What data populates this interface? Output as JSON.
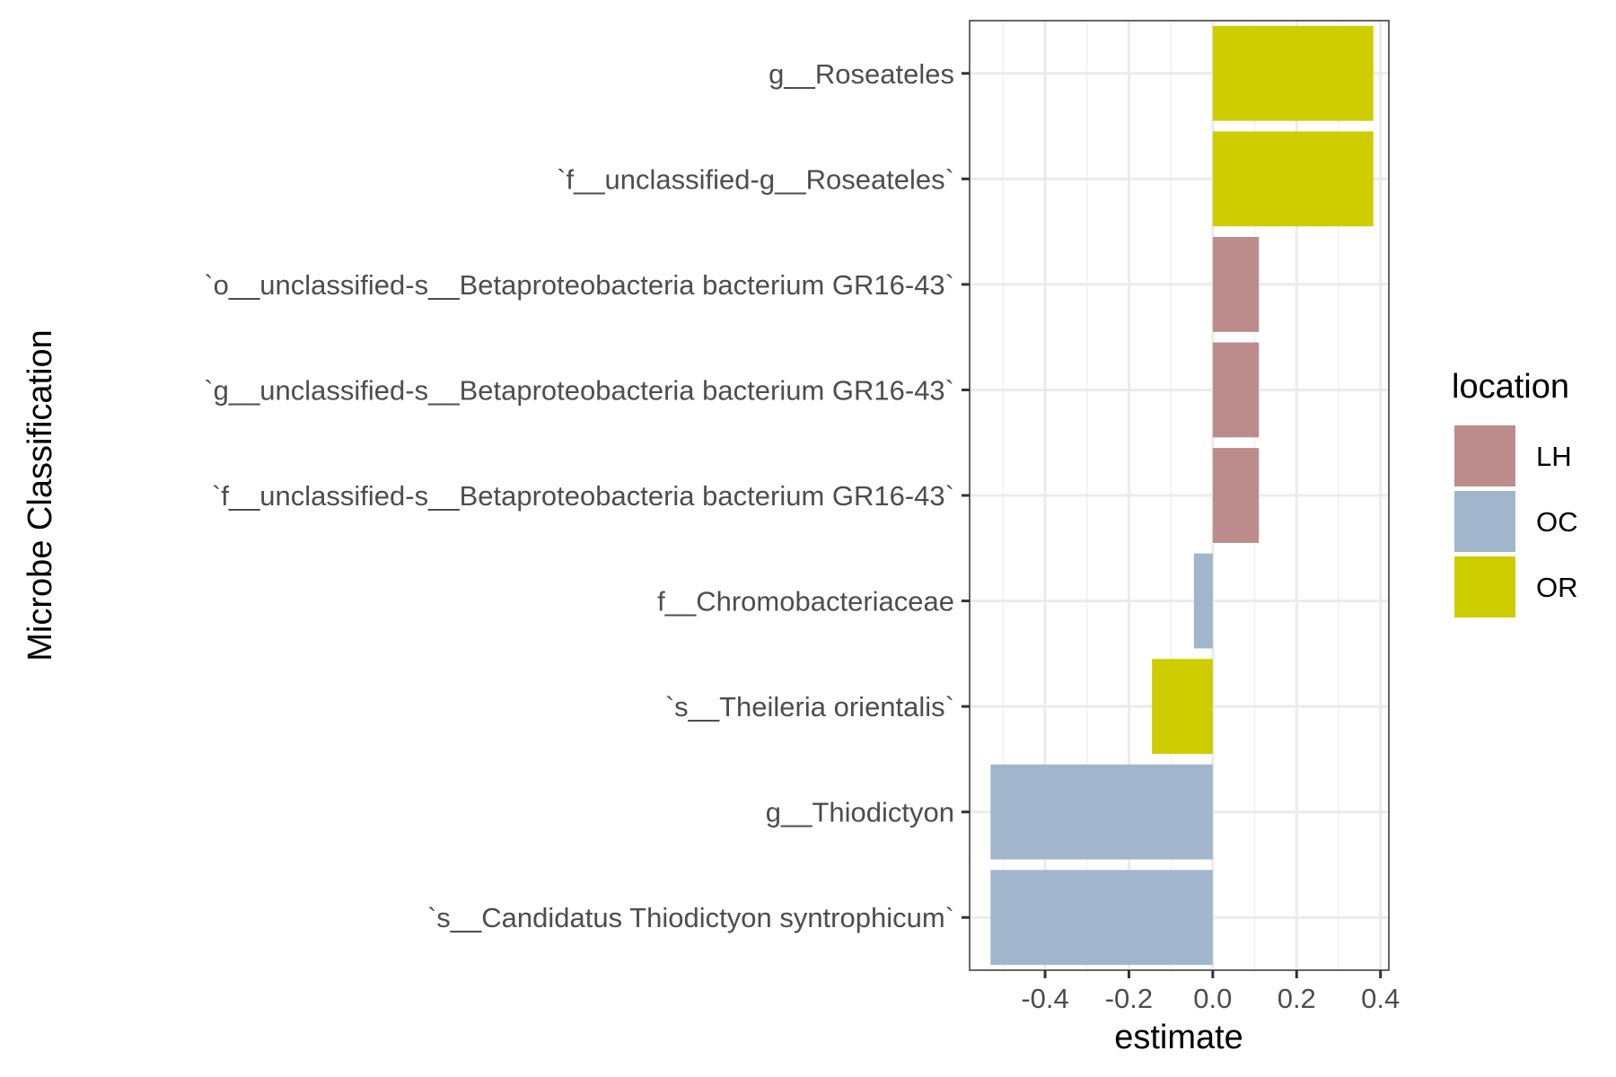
{
  "chart_data": {
    "type": "bar",
    "orientation": "horizontal",
    "xlabel": "estimate",
    "ylabel": "Microbe Classification",
    "xlim": [
      -0.58,
      0.42
    ],
    "x_ticks": [
      -0.4,
      -0.2,
      0.0,
      0.2,
      0.4
    ],
    "x_tick_labels": [
      "-0.4",
      "-0.2",
      "0.0",
      "0.2",
      "0.4"
    ],
    "grid": true,
    "legend_position": "right",
    "categories": [
      "g__Roseateles",
      "`f__unclassified-g__Roseateles`",
      "`o__unclassified-s__Betaproteobacteria bacterium GR16-43`",
      "`g__unclassified-s__Betaproteobacteria bacterium GR16-43`",
      "`f__unclassified-s__Betaproteobacteria bacterium GR16-43`",
      "f__Chromobacteriaceae",
      "`s__Theileria orientalis`",
      "g__Thiodictyon",
      "`s__Candidatus Thiodictyon syntrophicum`"
    ],
    "values": [
      0.383,
      0.383,
      0.11,
      0.11,
      0.11,
      -0.045,
      -0.145,
      -0.53,
      -0.53
    ],
    "groups": [
      "OR",
      "OR",
      "LH",
      "LH",
      "LH",
      "OC",
      "OR",
      "OC",
      "OC"
    ],
    "legend": {
      "title": "location",
      "items": [
        {
          "label": "LH",
          "color": "#bc8c8c"
        },
        {
          "label": "OC",
          "color": "#a1b6cd"
        },
        {
          "label": "OR",
          "color": "#cdcd00"
        }
      ]
    }
  }
}
